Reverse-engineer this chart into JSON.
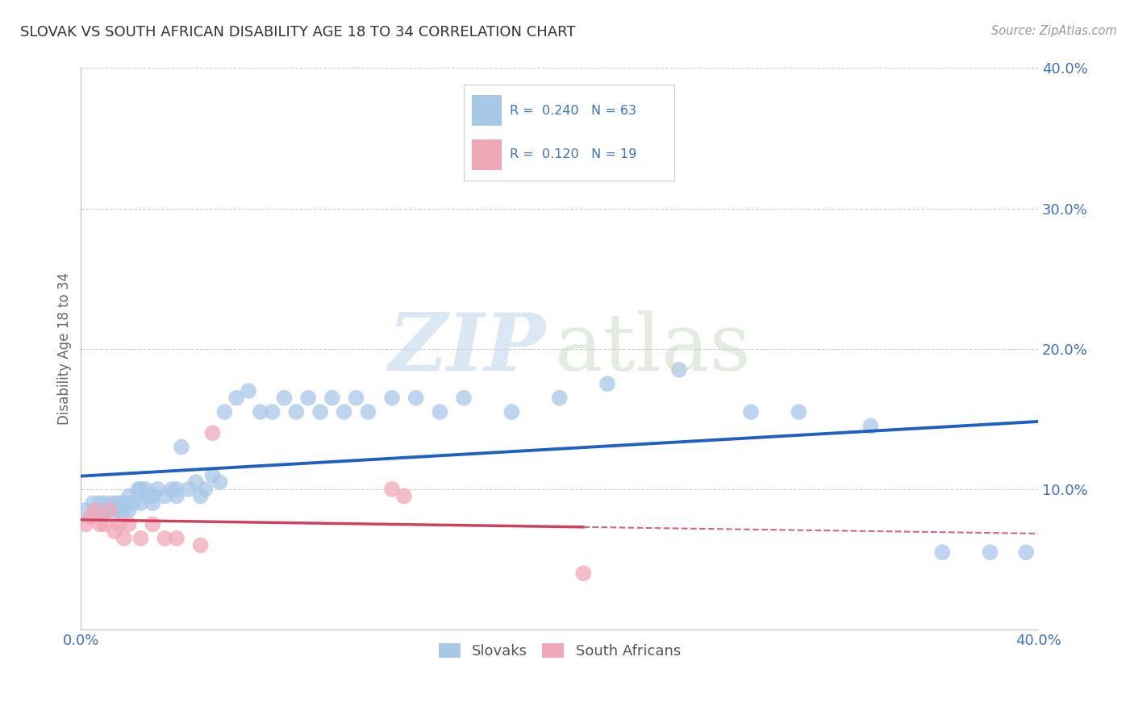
{
  "title": "SLOVAK VS SOUTH AFRICAN DISABILITY AGE 18 TO 34 CORRELATION CHART",
  "source": "Source: ZipAtlas.com",
  "ylabel": "Disability Age 18 to 34",
  "xlim": [
    0.0,
    0.4
  ],
  "ylim": [
    0.0,
    0.4
  ],
  "slovak_R": 0.24,
  "slovak_N": 63,
  "sa_R": 0.12,
  "sa_N": 19,
  "slovak_color": "#a8c8e8",
  "sa_color": "#f0a8b8",
  "trend_slovak_color": "#2060c0",
  "trend_sa_solid_color": "#d04060",
  "trend_sa_dash_color": "#d06880",
  "background_color": "#ffffff",
  "grid_color": "#d0d0d0",
  "tick_color": "#4070c0",
  "label_color": "#666666",
  "source_color": "#999999",
  "title_color": "#333333",
  "slovak_x": [
    0.002,
    0.005,
    0.007,
    0.008,
    0.01,
    0.01,
    0.012,
    0.013,
    0.014,
    0.015,
    0.016,
    0.017,
    0.018,
    0.019,
    0.02,
    0.02,
    0.022,
    0.024,
    0.025,
    0.025,
    0.027,
    0.028,
    0.03,
    0.03,
    0.032,
    0.035,
    0.038,
    0.04,
    0.04,
    0.042,
    0.045,
    0.048,
    0.05,
    0.052,
    0.055,
    0.058,
    0.06,
    0.065,
    0.07,
    0.075,
    0.08,
    0.085,
    0.09,
    0.095,
    0.1,
    0.105,
    0.11,
    0.115,
    0.12,
    0.13,
    0.14,
    0.15,
    0.16,
    0.18,
    0.2,
    0.22,
    0.25,
    0.28,
    0.3,
    0.33,
    0.36,
    0.38,
    0.395
  ],
  "slovak_y": [
    0.085,
    0.09,
    0.085,
    0.09,
    0.085,
    0.09,
    0.085,
    0.09,
    0.085,
    0.09,
    0.085,
    0.09,
    0.085,
    0.09,
    0.085,
    0.095,
    0.09,
    0.1,
    0.09,
    0.1,
    0.1,
    0.095,
    0.09,
    0.095,
    0.1,
    0.095,
    0.1,
    0.095,
    0.1,
    0.13,
    0.1,
    0.105,
    0.095,
    0.1,
    0.11,
    0.105,
    0.155,
    0.165,
    0.17,
    0.155,
    0.155,
    0.165,
    0.155,
    0.165,
    0.155,
    0.165,
    0.155,
    0.165,
    0.155,
    0.165,
    0.165,
    0.155,
    0.165,
    0.155,
    0.165,
    0.175,
    0.185,
    0.155,
    0.155,
    0.145,
    0.055,
    0.055,
    0.055
  ],
  "sa_x": [
    0.002,
    0.004,
    0.006,
    0.008,
    0.01,
    0.012,
    0.014,
    0.016,
    0.018,
    0.02,
    0.025,
    0.03,
    0.035,
    0.04,
    0.05,
    0.055,
    0.13,
    0.135,
    0.21
  ],
  "sa_y": [
    0.075,
    0.08,
    0.085,
    0.075,
    0.075,
    0.085,
    0.07,
    0.075,
    0.065,
    0.075,
    0.065,
    0.075,
    0.065,
    0.065,
    0.06,
    0.14,
    0.1,
    0.095,
    0.04
  ]
}
